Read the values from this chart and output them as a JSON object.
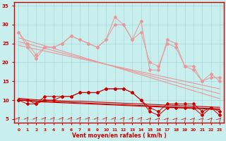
{
  "xlabel": "Vent moyen/en rafales ( km/h )",
  "x": [
    0,
    1,
    2,
    3,
    4,
    5,
    6,
    7,
    8,
    9,
    10,
    11,
    12,
    13,
    14,
    15,
    16,
    17,
    18,
    19,
    20,
    21,
    22,
    23
  ],
  "series_light_jagged": [
    [
      28,
      24,
      21,
      24,
      24,
      25,
      27,
      26,
      25,
      24,
      26,
      32,
      30,
      26,
      31,
      18,
      18,
      26,
      25,
      19,
      19,
      15,
      17,
      15
    ],
    [
      28,
      25,
      22,
      24,
      24,
      25,
      27,
      26,
      25,
      24,
      26,
      30,
      30,
      26,
      28,
      20,
      19,
      25,
      24,
      19,
      18,
      15,
      16,
      16
    ]
  ],
  "series_light_linear": [
    [
      26.5,
      25.8,
      25.1,
      24.4,
      23.7,
      23.0,
      22.3,
      21.6,
      20.9,
      20.2,
      19.5,
      18.8,
      18.1,
      17.4,
      16.7,
      16.0,
      15.3,
      14.6,
      13.9,
      13.2,
      12.5,
      11.8,
      11.1,
      10.4
    ],
    [
      25.5,
      24.9,
      24.3,
      23.7,
      23.1,
      22.5,
      21.9,
      21.3,
      20.7,
      20.1,
      19.5,
      18.9,
      18.3,
      17.7,
      17.1,
      16.5,
      15.9,
      15.3,
      14.7,
      14.1,
      13.5,
      12.9,
      12.3,
      11.7
    ],
    [
      24.5,
      24.0,
      23.5,
      23.0,
      22.5,
      22.0,
      21.5,
      21.0,
      20.5,
      20.0,
      19.5,
      19.0,
      18.5,
      18.0,
      17.5,
      17.0,
      16.5,
      16.0,
      15.5,
      15.0,
      14.5,
      14.0,
      13.5,
      13.0
    ]
  ],
  "series_dark_jagged": [
    [
      10,
      10,
      9,
      11,
      11,
      11,
      11,
      12,
      12,
      12,
      13,
      13,
      13,
      12,
      10,
      8,
      7,
      9,
      9,
      9,
      9,
      7,
      8,
      7
    ],
    [
      10,
      9,
      9,
      10,
      10,
      11,
      11,
      12,
      12,
      12,
      13,
      13,
      13,
      12,
      10,
      7,
      6,
      8,
      8,
      8,
      8,
      6,
      8,
      6
    ]
  ],
  "series_dark_linear": [
    [
      10.5,
      10.3,
      10.1,
      10.0,
      9.9,
      9.8,
      9.7,
      9.7,
      9.6,
      9.5,
      9.4,
      9.3,
      9.2,
      9.1,
      9.0,
      8.9,
      8.8,
      8.7,
      8.6,
      8.5,
      8.4,
      8.3,
      8.2,
      8.1
    ],
    [
      10.2,
      10.0,
      9.8,
      9.7,
      9.6,
      9.5,
      9.4,
      9.3,
      9.2,
      9.1,
      9.0,
      8.9,
      8.8,
      8.7,
      8.6,
      8.5,
      8.4,
      8.3,
      8.2,
      8.1,
      8.0,
      7.9,
      7.8,
      7.7
    ],
    [
      10.0,
      9.8,
      9.6,
      9.5,
      9.4,
      9.3,
      9.2,
      9.1,
      9.0,
      8.9,
      8.8,
      8.7,
      8.6,
      8.5,
      8.4,
      8.3,
      8.2,
      8.1,
      8.0,
      7.9,
      7.8,
      7.7,
      7.6,
      7.5
    ]
  ],
  "ylim": [
    4,
    36
  ],
  "yticks": [
    5,
    10,
    15,
    20,
    25,
    30,
    35
  ],
  "xticks": [
    0,
    1,
    2,
    3,
    4,
    5,
    6,
    7,
    8,
    9,
    10,
    11,
    12,
    13,
    14,
    15,
    16,
    17,
    18,
    19,
    20,
    21,
    22,
    23
  ],
  "bg_color": "#c8eeee",
  "grid_color": "#a8d8d8",
  "light_color": "#e89898",
  "dark_color": "#cc0000",
  "axis_color": "#cc0000",
  "tick_color": "#cc0000",
  "label_color": "#cc0000"
}
